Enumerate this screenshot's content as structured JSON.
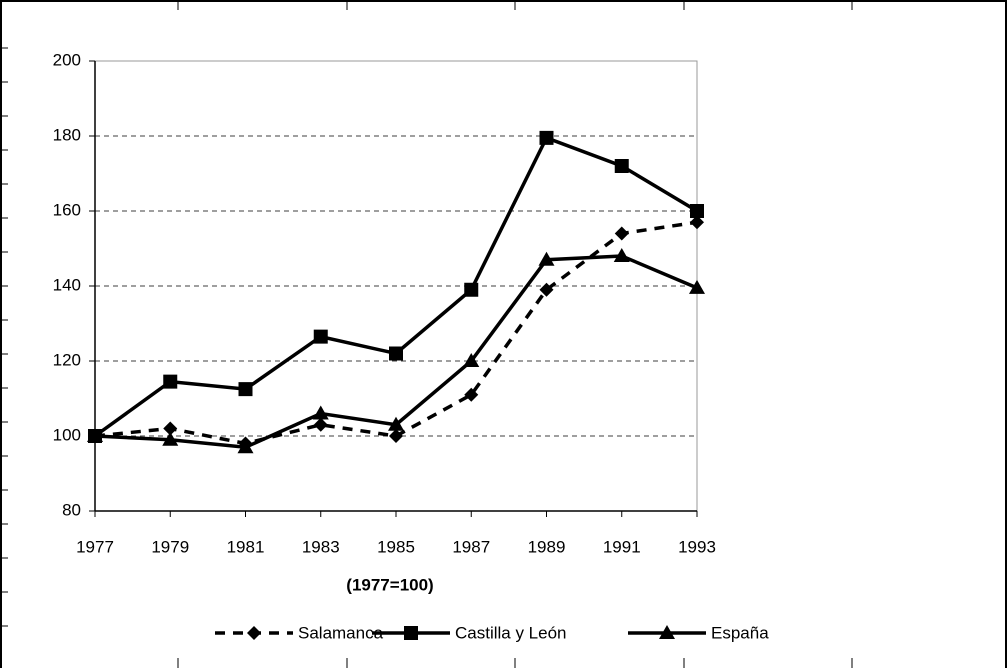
{
  "chart_data": {
    "type": "line",
    "subtitle": "(1977=100)",
    "x": [
      1977,
      1979,
      1981,
      1983,
      1985,
      1987,
      1989,
      1991,
      1993
    ],
    "xlim": [
      1977,
      1993
    ],
    "xticks": [
      1977,
      1979,
      1981,
      1983,
      1985,
      1987,
      1989,
      1991,
      1993
    ],
    "ylim": [
      80,
      200
    ],
    "yticks": [
      80,
      100,
      120,
      140,
      160,
      180,
      200
    ],
    "grid": true,
    "legend": "bottom",
    "series": [
      {
        "name": "Salamanca",
        "color": "#000000",
        "dash": true,
        "marker": "diamond",
        "values": [
          100,
          102,
          98,
          103,
          100,
          111,
          139,
          154,
          157
        ]
      },
      {
        "name": "Castilla y León",
        "color": "#000000",
        "dash": false,
        "marker": "square",
        "values": [
          100,
          114.5,
          112.5,
          126.5,
          122,
          139,
          179.5,
          172,
          160
        ]
      },
      {
        "name": "España",
        "color": "#000000",
        "dash": false,
        "marker": "triangle",
        "values": [
          100,
          99,
          97,
          106,
          103,
          120,
          147,
          148,
          139.5
        ]
      }
    ]
  }
}
